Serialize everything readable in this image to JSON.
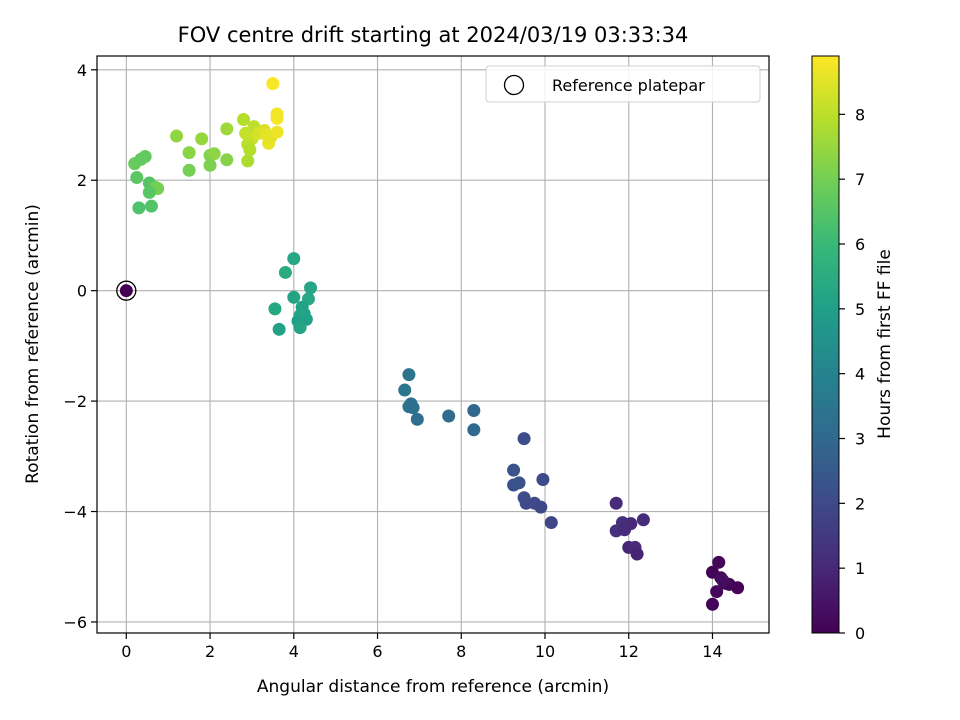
{
  "chart_data": {
    "type": "scatter",
    "title": "FOV centre drift starting at 2024/03/19 03:33:34",
    "xlabel": "Angular distance from reference (arcmin)",
    "ylabel": "Rotation from reference (arcmin)",
    "xlim": [
      -0.7,
      15.35
    ],
    "ylim": [
      -6.2,
      4.25
    ],
    "xticks": [
      0,
      2,
      4,
      6,
      8,
      10,
      12,
      14
    ],
    "yticks": [
      -6,
      -4,
      -2,
      0,
      2,
      4
    ],
    "xtick_labels": [
      "0",
      "2",
      "4",
      "6",
      "8",
      "10",
      "12",
      "14"
    ],
    "ytick_labels": [
      "−6",
      "−4",
      "−2",
      "0",
      "2",
      "4"
    ],
    "grid": true,
    "legend": {
      "position": "top-right",
      "entries": [
        "Reference platepar"
      ]
    },
    "colorbar": {
      "label": "Hours from first FF file",
      "range": [
        0,
        8.9
      ],
      "ticks": [
        0,
        1,
        2,
        3,
        4,
        5,
        6,
        7,
        8
      ],
      "tick_labels": [
        "0",
        "1",
        "2",
        "3",
        "4",
        "5",
        "6",
        "7",
        "8"
      ],
      "colormap": "viridis"
    },
    "colormap_stops": [
      "#440154",
      "#482878",
      "#3e4989",
      "#31688e",
      "#26828e",
      "#1f9e89",
      "#35b779",
      "#6ece58",
      "#b5de2b",
      "#fde725"
    ],
    "reference_point": {
      "x": 0,
      "y": 0,
      "hours": 0
    },
    "points": [
      {
        "x": 14.0,
        "y": -5.1,
        "h": 0.1
      },
      {
        "x": 14.15,
        "y": -4.92,
        "h": 0.15
      },
      {
        "x": 14.2,
        "y": -5.2,
        "h": 0.2
      },
      {
        "x": 14.3,
        "y": -5.3,
        "h": 0.25
      },
      {
        "x": 14.6,
        "y": -5.38,
        "h": 0.05
      },
      {
        "x": 14.4,
        "y": -5.32,
        "h": 0.1
      },
      {
        "x": 14.1,
        "y": -5.45,
        "h": 0.2
      },
      {
        "x": 14.0,
        "y": -5.68,
        "h": 0.1
      },
      {
        "x": 14.25,
        "y": -5.25,
        "h": 0.3
      },
      {
        "x": 11.7,
        "y": -3.85,
        "h": 1.1
      },
      {
        "x": 11.85,
        "y": -4.2,
        "h": 1.2
      },
      {
        "x": 12.05,
        "y": -4.22,
        "h": 1.0
      },
      {
        "x": 12.35,
        "y": -4.15,
        "h": 1.15
      },
      {
        "x": 11.7,
        "y": -4.35,
        "h": 1.25
      },
      {
        "x": 11.9,
        "y": -4.33,
        "h": 1.1
      },
      {
        "x": 12.0,
        "y": -4.65,
        "h": 0.95
      },
      {
        "x": 12.15,
        "y": -4.65,
        "h": 1.05
      },
      {
        "x": 12.2,
        "y": -4.77,
        "h": 0.9
      },
      {
        "x": 9.5,
        "y": -2.68,
        "h": 2.1
      },
      {
        "x": 9.95,
        "y": -3.42,
        "h": 2.0
      },
      {
        "x": 9.25,
        "y": -3.25,
        "h": 2.3
      },
      {
        "x": 9.25,
        "y": -3.52,
        "h": 2.2
      },
      {
        "x": 9.38,
        "y": -3.48,
        "h": 2.25
      },
      {
        "x": 9.5,
        "y": -3.75,
        "h": 2.1
      },
      {
        "x": 9.55,
        "y": -3.85,
        "h": 2.05
      },
      {
        "x": 9.75,
        "y": -3.85,
        "h": 2.0
      },
      {
        "x": 9.9,
        "y": -3.92,
        "h": 1.95
      },
      {
        "x": 10.15,
        "y": -4.2,
        "h": 1.9
      },
      {
        "x": 6.75,
        "y": -1.52,
        "h": 3.4
      },
      {
        "x": 6.65,
        "y": -1.8,
        "h": 3.5
      },
      {
        "x": 6.8,
        "y": -2.05,
        "h": 3.3
      },
      {
        "x": 6.75,
        "y": -2.1,
        "h": 3.35
      },
      {
        "x": 6.85,
        "y": -2.12,
        "h": 3.25
      },
      {
        "x": 6.95,
        "y": -2.33,
        "h": 3.2
      },
      {
        "x": 7.7,
        "y": -2.27,
        "h": 3.1
      },
      {
        "x": 8.3,
        "y": -2.17,
        "h": 3.0
      },
      {
        "x": 8.3,
        "y": -2.52,
        "h": 3.05
      },
      {
        "x": 4.0,
        "y": 0.58,
        "h": 5.3
      },
      {
        "x": 3.8,
        "y": 0.33,
        "h": 5.4
      },
      {
        "x": 4.0,
        "y": -0.12,
        "h": 5.2
      },
      {
        "x": 4.4,
        "y": 0.05,
        "h": 5.25
      },
      {
        "x": 4.35,
        "y": -0.15,
        "h": 5.3
      },
      {
        "x": 3.55,
        "y": -0.33,
        "h": 5.35
      },
      {
        "x": 4.2,
        "y": -0.3,
        "h": 5.1
      },
      {
        "x": 4.15,
        "y": -0.45,
        "h": 5.15
      },
      {
        "x": 4.25,
        "y": -0.42,
        "h": 5.2
      },
      {
        "x": 4.1,
        "y": -0.55,
        "h": 5.0
      },
      {
        "x": 4.3,
        "y": -0.52,
        "h": 5.05
      },
      {
        "x": 3.65,
        "y": -0.7,
        "h": 5.1
      },
      {
        "x": 4.15,
        "y": -0.67,
        "h": 5.15
      },
      {
        "x": 0.2,
        "y": 2.3,
        "h": 6.8
      },
      {
        "x": 0.35,
        "y": 2.38,
        "h": 6.7
      },
      {
        "x": 0.45,
        "y": 2.43,
        "h": 6.75
      },
      {
        "x": 0.25,
        "y": 2.05,
        "h": 6.6
      },
      {
        "x": 0.55,
        "y": 1.95,
        "h": 6.5
      },
      {
        "x": 0.7,
        "y": 1.87,
        "h": 6.9
      },
      {
        "x": 0.75,
        "y": 1.85,
        "h": 7.0
      },
      {
        "x": 0.55,
        "y": 1.78,
        "h": 6.55
      },
      {
        "x": 0.6,
        "y": 1.53,
        "h": 6.45
      },
      {
        "x": 0.3,
        "y": 1.5,
        "h": 6.4
      },
      {
        "x": 1.2,
        "y": 2.8,
        "h": 7.4
      },
      {
        "x": 1.8,
        "y": 2.75,
        "h": 7.5
      },
      {
        "x": 1.5,
        "y": 2.5,
        "h": 7.3
      },
      {
        "x": 2.0,
        "y": 2.45,
        "h": 7.2
      },
      {
        "x": 2.1,
        "y": 2.48,
        "h": 7.35
      },
      {
        "x": 2.4,
        "y": 2.37,
        "h": 7.25
      },
      {
        "x": 2.0,
        "y": 2.27,
        "h": 7.1
      },
      {
        "x": 1.5,
        "y": 2.18,
        "h": 7.0
      },
      {
        "x": 2.4,
        "y": 2.93,
        "h": 7.6
      },
      {
        "x": 2.8,
        "y": 3.1,
        "h": 7.9
      },
      {
        "x": 3.05,
        "y": 2.97,
        "h": 8.0
      },
      {
        "x": 2.85,
        "y": 2.85,
        "h": 8.1
      },
      {
        "x": 3.0,
        "y": 2.75,
        "h": 8.2
      },
      {
        "x": 2.9,
        "y": 2.65,
        "h": 8.0
      },
      {
        "x": 2.95,
        "y": 2.55,
        "h": 7.9
      },
      {
        "x": 2.9,
        "y": 2.35,
        "h": 7.8
      },
      {
        "x": 3.15,
        "y": 2.85,
        "h": 8.3
      },
      {
        "x": 3.3,
        "y": 2.9,
        "h": 8.4
      },
      {
        "x": 3.45,
        "y": 2.78,
        "h": 8.5
      },
      {
        "x": 3.4,
        "y": 2.67,
        "h": 8.6
      },
      {
        "x": 3.6,
        "y": 2.87,
        "h": 8.7
      },
      {
        "x": 3.6,
        "y": 3.12,
        "h": 8.8
      },
      {
        "x": 3.6,
        "y": 3.2,
        "h": 8.75
      },
      {
        "x": 3.5,
        "y": 3.75,
        "h": 8.85
      },
      {
        "x": 3.35,
        "y": 2.82,
        "h": 8.55
      },
      {
        "x": 0.0,
        "y": 0.0,
        "h": 0.0
      }
    ]
  }
}
